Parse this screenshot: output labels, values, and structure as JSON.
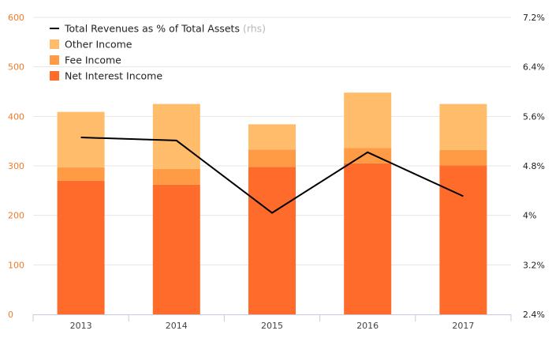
{
  "chart_data": {
    "type": "bar",
    "stacked": true,
    "categories": [
      "2013",
      "2014",
      "2015",
      "2016",
      "2017"
    ],
    "series": [
      {
        "name": "Net Interest Income",
        "type": "bar",
        "axis": "left",
        "color": "#ff6b2b",
        "values": [
          270,
          262,
          298,
          305,
          301
        ]
      },
      {
        "name": "Fee Income",
        "type": "bar",
        "axis": "left",
        "color": "#ff9a45",
        "values": [
          27,
          32,
          35,
          31,
          31
        ]
      },
      {
        "name": "Other Income",
        "type": "bar",
        "axis": "left",
        "color": "#ffbd6c",
        "values": [
          112,
          131,
          51,
          112,
          93
        ]
      },
      {
        "name": "Total Revenues as % of Total Assets",
        "name_suffix": "(rhs)",
        "type": "line",
        "axis": "right",
        "color": "#000000",
        "values": [
          5.26,
          5.21,
          4.04,
          5.02,
          4.31
        ]
      }
    ],
    "y_left": {
      "ylim": [
        0,
        600
      ],
      "ticks": [
        "0",
        "100",
        "200",
        "300",
        "400",
        "500",
        "600"
      ]
    },
    "y_right": {
      "ylim": [
        2.4,
        7.2
      ],
      "ticks": [
        "2.4%",
        "3.2%",
        "4%",
        "4.8%",
        "5.6%",
        "6.4%",
        "7.2%"
      ]
    },
    "legend": {
      "placement": "top-left",
      "order": [
        "Total Revenues as % of Total Assets",
        "Other Income",
        "Fee Income",
        "Net Interest Income"
      ]
    },
    "grid": true,
    "colors": {
      "grid": "#e6e6e6",
      "axis": "#c7cbe0",
      "left_tick_text": "#f07a2a"
    }
  }
}
